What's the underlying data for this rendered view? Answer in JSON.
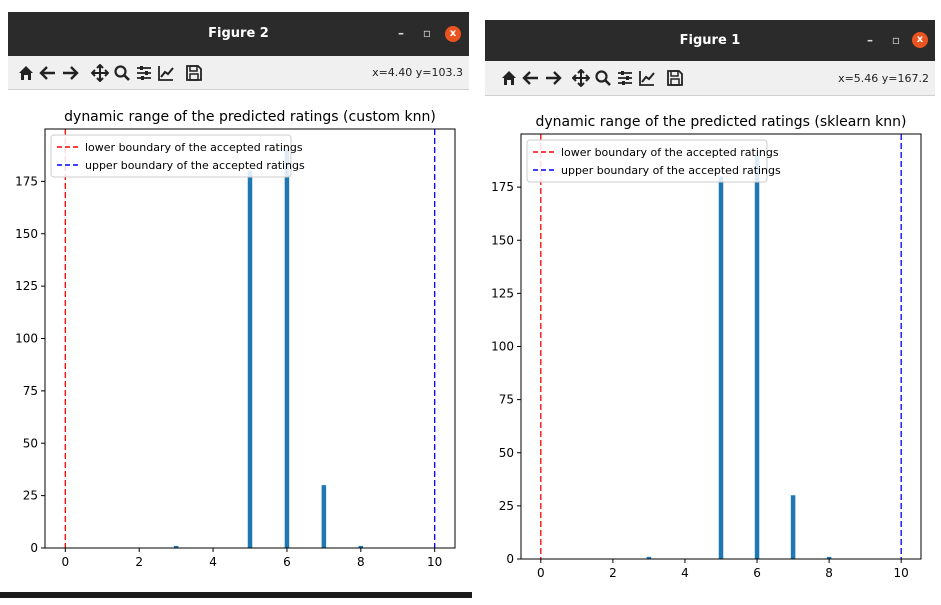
{
  "windows": [
    {
      "title": "Figure 2",
      "coords": "x=4.40 y=103.3",
      "chart_data": {
        "type": "bar",
        "title": "dynamic range of the predicted ratings (custom knn)",
        "xlabel": "",
        "ylabel": "",
        "xlim": [
          -0.55,
          10.55
        ],
        "ylim": [
          0,
          200
        ],
        "xticks": [
          0,
          2,
          4,
          6,
          8,
          10
        ],
        "yticks": [
          0,
          25,
          50,
          75,
          100,
          125,
          150,
          175
        ],
        "bars": [
          {
            "x": 3,
            "height": 1
          },
          {
            "x": 5,
            "height": 180
          },
          {
            "x": 6,
            "height": 190
          },
          {
            "x": 7,
            "height": 30
          },
          {
            "x": 8,
            "height": 1
          }
        ],
        "vlines": [
          {
            "x": 0,
            "color": "#ff0000",
            "label": "lower boundary of the accepted ratings"
          },
          {
            "x": 10,
            "color": "#0000ff",
            "label": "upper boundary of the accepted ratings"
          }
        ],
        "bar_color": "#1f77b4",
        "legend_position": "upper left"
      }
    },
    {
      "title": "Figure 1",
      "coords": "x=5.46 y=167.2",
      "chart_data": {
        "type": "bar",
        "title": "dynamic range of the predicted ratings (sklearn knn)",
        "xlabel": "",
        "ylabel": "",
        "xlim": [
          -0.55,
          10.55
        ],
        "ylim": [
          0,
          200
        ],
        "xticks": [
          0,
          2,
          4,
          6,
          8,
          10
        ],
        "yticks": [
          0,
          25,
          50,
          75,
          100,
          125,
          150,
          175
        ],
        "bars": [
          {
            "x": 3,
            "height": 1
          },
          {
            "x": 5,
            "height": 180
          },
          {
            "x": 6,
            "height": 190
          },
          {
            "x": 7,
            "height": 30
          },
          {
            "x": 8,
            "height": 1
          }
        ],
        "vlines": [
          {
            "x": 0,
            "color": "#ff0000",
            "label": "lower boundary of the accepted ratings"
          },
          {
            "x": 10,
            "color": "#0000ff",
            "label": "upper boundary of the accepted ratings"
          }
        ],
        "bar_color": "#1f77b4",
        "legend_position": "upper left"
      }
    }
  ],
  "toolbar_icons": [
    "home-icon",
    "back-arrow-icon",
    "forward-arrow-icon",
    "pan-icon",
    "zoom-icon",
    "configure-subplots-icon",
    "edit-axes-icon",
    "save-icon"
  ],
  "window_controls": {
    "minimize": "–",
    "maximize": "▫",
    "close": "x"
  }
}
